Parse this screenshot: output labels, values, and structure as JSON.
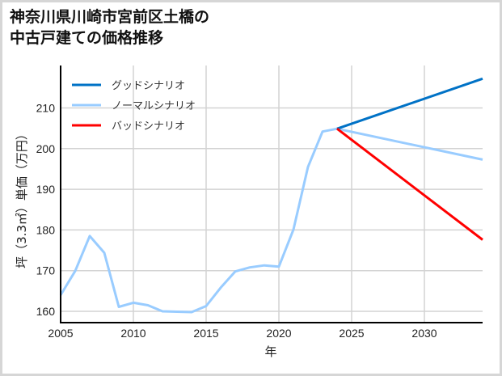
{
  "title_line1": "神奈川県川崎市宮前区土橋の",
  "title_line2": "中古戸建ての価格推移",
  "chart_data": {
    "type": "line",
    "title": "神奈川県川崎市宮前区土橋の中古戸建ての価格推移",
    "xlabel": "年",
    "ylabel": "坪（3.3㎡）単価（万円）",
    "xlim": [
      2005,
      2034
    ],
    "ylim": [
      157,
      220
    ],
    "xticks": [
      2005,
      2010,
      2015,
      2020,
      2025,
      2030
    ],
    "yticks": [
      160,
      170,
      180,
      190,
      200,
      210
    ],
    "grid": true,
    "legend_position": "upper left",
    "series": [
      {
        "name": "グッドシナリオ",
        "color": "#0072c6",
        "x": [
          2024,
          2034
        ],
        "values": [
          204.9,
          217.2
        ]
      },
      {
        "name": "ノーマルシナリオ",
        "color": "#99ccff",
        "x": [
          2005,
          2006,
          2007,
          2008,
          2009,
          2010,
          2011,
          2012,
          2013,
          2014,
          2015,
          2016,
          2017,
          2018,
          2019,
          2020,
          2021,
          2022,
          2023,
          2024,
          2034
        ],
        "values": [
          164.0,
          169.9,
          178.5,
          174.4,
          161.1,
          162.1,
          161.5,
          160.0,
          159.9,
          159.8,
          161.3,
          165.8,
          169.8,
          170.8,
          171.3,
          171.0,
          180.1,
          195.5,
          204.2,
          204.9,
          197.3
        ]
      },
      {
        "name": "バッドシナリオ",
        "color": "#ff0000",
        "x": [
          2024,
          2034
        ],
        "values": [
          204.9,
          177.6
        ]
      }
    ]
  }
}
